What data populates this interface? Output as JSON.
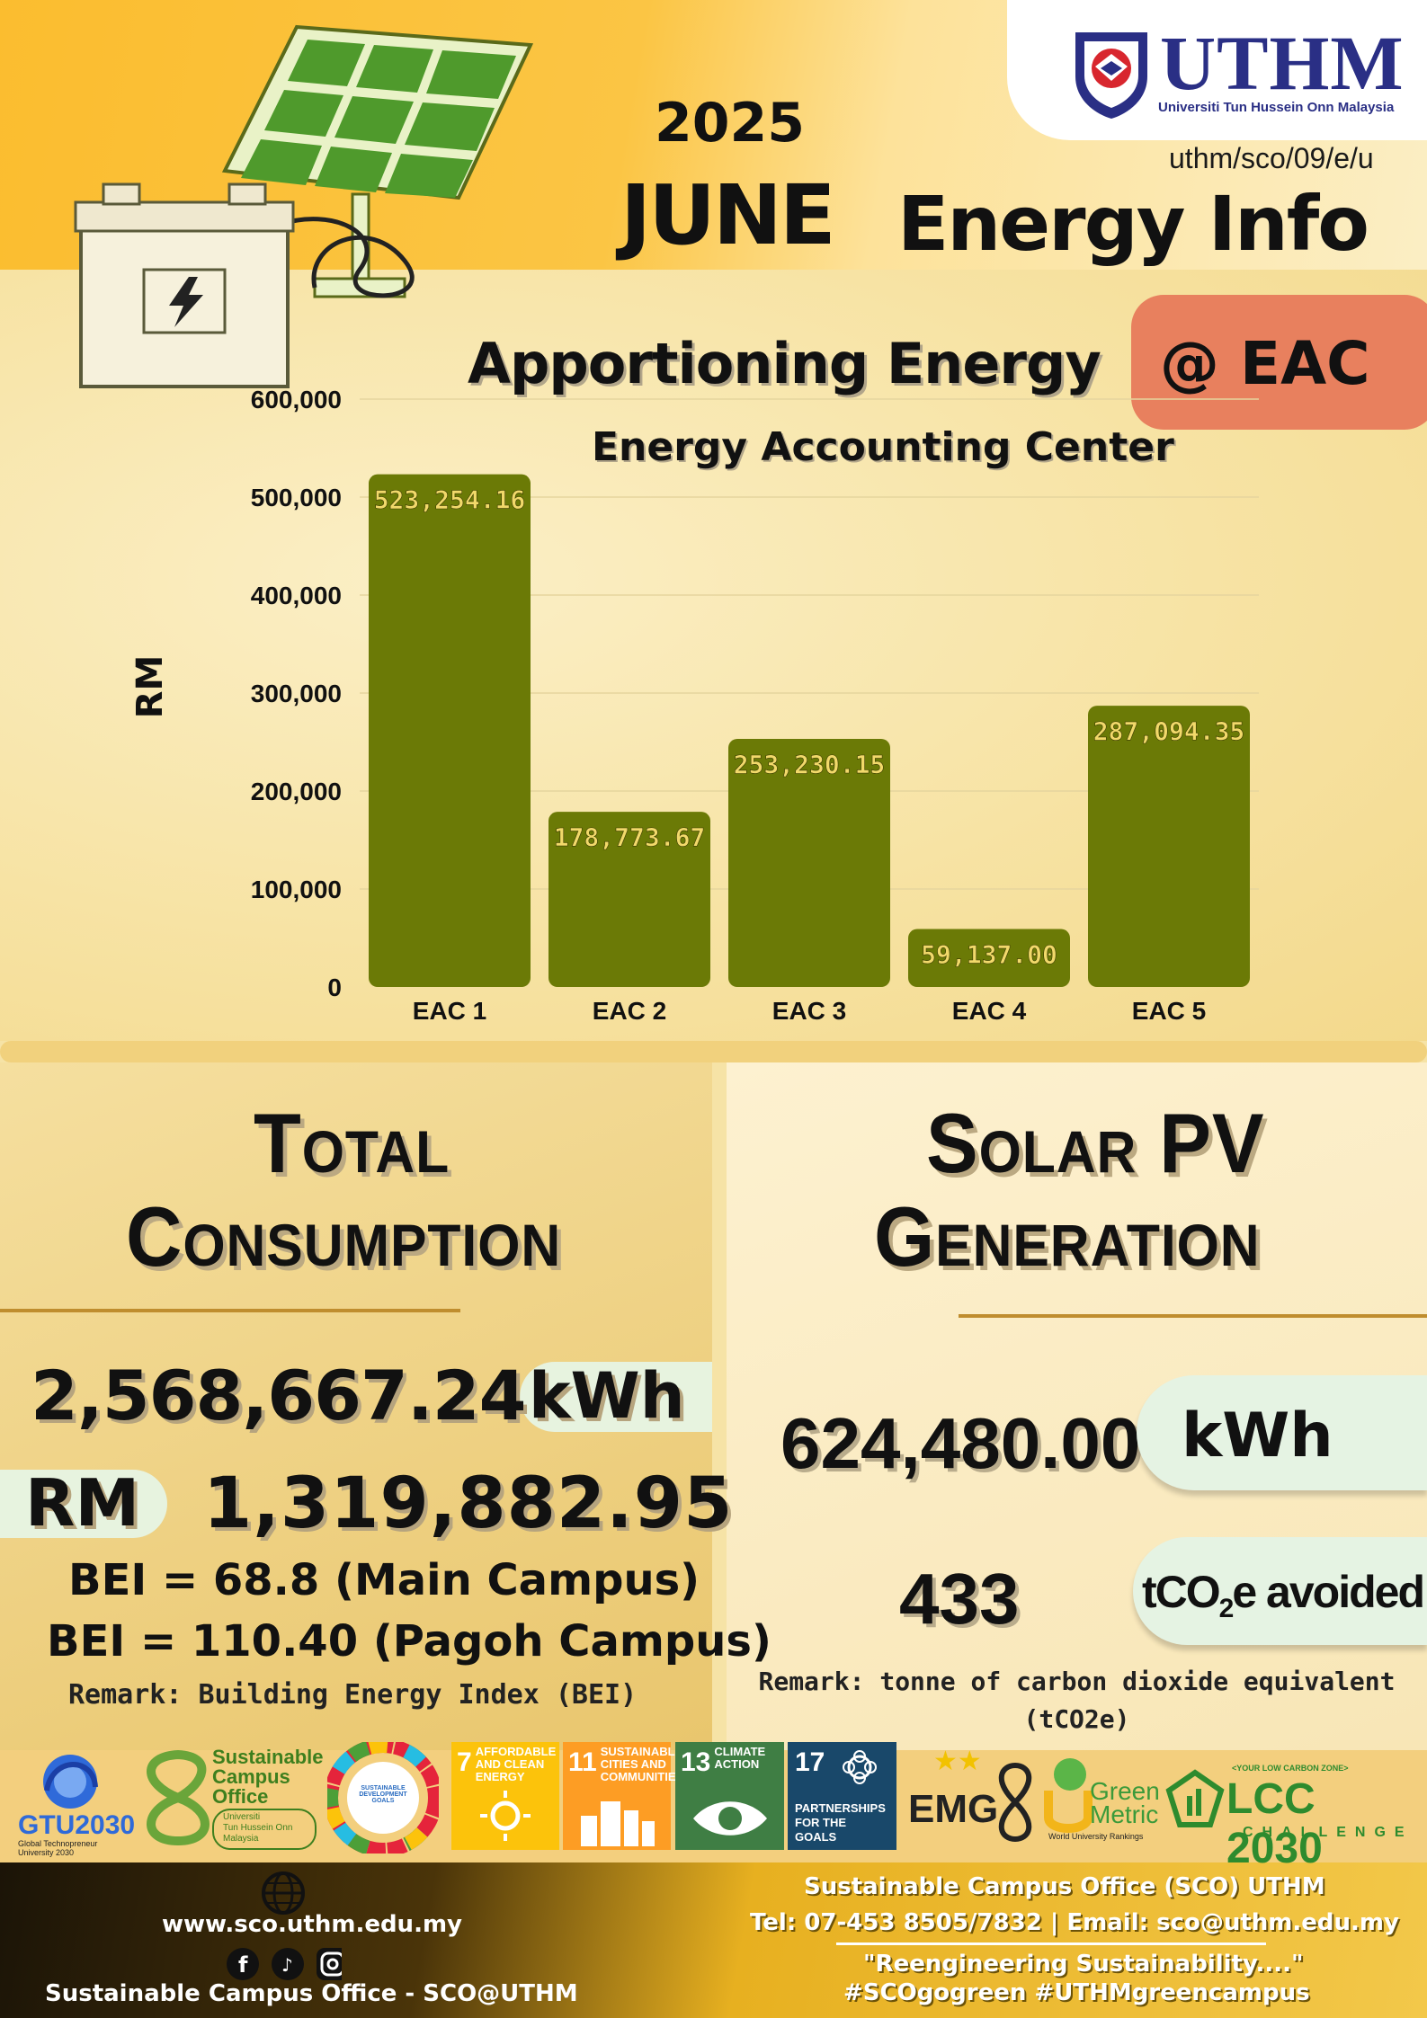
{
  "header": {
    "year": "2025",
    "month": "JUNE",
    "title": "Energy Info",
    "reference": "uthm/sco/09/e/u",
    "university_logo_text": "UTHM",
    "university_name": "Universiti Tun Hussein Onn Malaysia"
  },
  "chart_heading": {
    "title": "Apportioning Energy",
    "tag": "@ EAC",
    "subtitle": "Energy Accounting Center"
  },
  "chart_data": {
    "type": "bar",
    "title": "Apportioning Energy @ EAC",
    "subtitle": "Energy Accounting Center",
    "xlabel": "",
    "ylabel": "RM",
    "categories": [
      "EAC 1",
      "EAC 2",
      "EAC 3",
      "EAC 4",
      "EAC 5"
    ],
    "values": [
      523254.16,
      178773.67,
      253230.15,
      59137.0,
      287094.35
    ],
    "data_labels": [
      "523,254.16",
      "178,773.67",
      "253,230.15",
      "59,137.00",
      "287,094.35"
    ],
    "ylim": [
      0,
      600000
    ],
    "yticks": [
      "0",
      "100,000",
      "200,000",
      "300,000",
      "400,000",
      "500,000",
      "600,000"
    ],
    "grid": true,
    "bar_color": "#6b7a06",
    "label_color": "#f2d96a"
  },
  "total_consumption": {
    "heading_line1": "Total",
    "heading_line2": "Consumption",
    "energy_value": "2,568,667.24",
    "energy_unit": "kWh",
    "cost_unit": "RM",
    "cost_value": "1,319,882.95",
    "bei_main": "BEI = 68.8 (Main Campus)",
    "bei_pagoh": "BEI =  110.40 (Pagoh Campus)",
    "remark": "Remark: Building Energy Index (BEI)"
  },
  "solar_pv": {
    "heading_line1": "Solar PV",
    "heading_line2": "Generation",
    "energy_value": "624,480.00",
    "energy_unit": "kWh",
    "co2_value": "433",
    "co2_unit_prefix": "tCO",
    "co2_unit_sub": "2",
    "co2_unit_suffix": "e avoided",
    "remark_line1": "Remark: tonne of carbon dioxide equivalent",
    "remark_line2": "(tCO2e)"
  },
  "logos": {
    "gtu": "GTU2030",
    "gtu_sub": "Global Technopreneur University 2030",
    "sco_line1": "Sustainable",
    "sco_line2": "Campus",
    "sco_line3": "Office",
    "sco_sub1": "Universiti",
    "sco_sub2": "Tun Hussein Onn",
    "sco_sub3": "Malaysia",
    "sdg_wheel": "SUSTAINABLE DEVELOPMENT GOALS",
    "sdg7_num": "7",
    "sdg7_text": "AFFORDABLE AND CLEAN ENERGY",
    "sdg11_num": "11",
    "sdg11_text": "SUSTAINABLE CITIES AND COMMUNITIES",
    "sdg13_num": "13",
    "sdg13_text": "CLIMATE ACTION",
    "sdg17_num": "17",
    "sdg17_text": "PARTNERSHIPS FOR THE GOALS",
    "emg": "EMG",
    "ui_green_line1": "Green",
    "ui_green_line2": "Metric",
    "ui_green_sub": "World University Rankings",
    "lcc_top": "<YOUR LOW CARBON ZONE>",
    "lcc_main": "LCC 2030",
    "lcc_bottom": "CHALLENGE"
  },
  "footer": {
    "website": "www.sco.uthm.edu.my",
    "social_handle": "Sustainable Campus Office - SCO@UTHM",
    "office_name": "Sustainable Campus Office (SCO) UTHM",
    "contact": "Tel: 07-453 8505/7832 | Email: sco@uthm.edu.my",
    "slogan": "\"Reengineering Sustainability....\"",
    "hashtags": "#SCOgogreen #UTHMgreencampus"
  },
  "colors": {
    "header_yellow": "#fbbd2f",
    "eac_pill": "#e8805e",
    "bar": "#6b7a06",
    "pill_green": "#e7f3df",
    "uthm_navy": "#2a2f85"
  }
}
